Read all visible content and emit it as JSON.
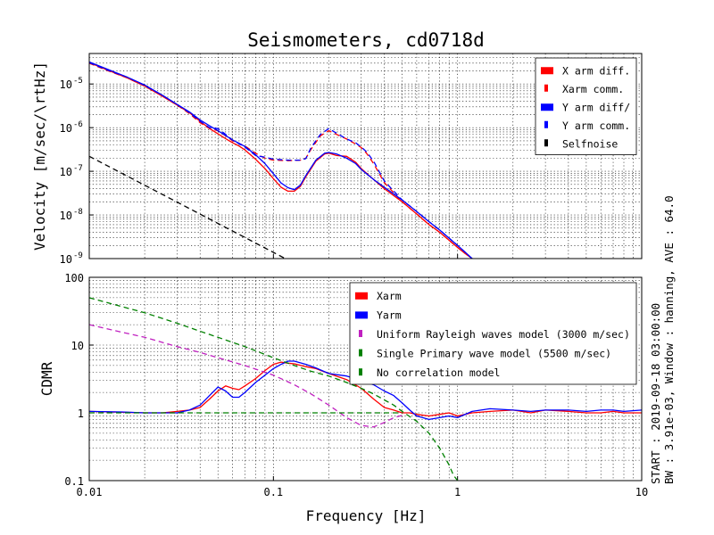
{
  "title": "Seismometers, cd0718d",
  "side_note": {
    "line1": "START : 2019-09-18 03:00:00",
    "line2": "BW : 3.91e-03, Window : hanning, AVE : 64.0"
  },
  "colors": {
    "red": "#ff0000",
    "blue": "#0000ff",
    "black": "#000000",
    "magenta": "#c020c0",
    "green": "#008000"
  },
  "chart_data": [
    {
      "type": "line",
      "panel": "top",
      "ylabel": "Velocity [m/sec/\\rtHz]",
      "xlabel": "",
      "xscale": "log",
      "yscale": "log",
      "xlim": [
        0.01,
        10
      ],
      "ylim": [
        1e-09,
        5e-05
      ],
      "grid": true,
      "legend_position": "top-right",
      "x_ticks": [
        {
          "value": 0.01,
          "label": ""
        },
        {
          "value": 0.1,
          "label": ""
        },
        {
          "value": 1,
          "label": ""
        },
        {
          "value": 10,
          "label": ""
        }
      ],
      "y_ticks": [
        {
          "value": 1e-09,
          "base": "10",
          "exp": "-9"
        },
        {
          "value": 1e-08,
          "base": "10",
          "exp": "-8"
        },
        {
          "value": 1e-07,
          "base": "10",
          "exp": "-7"
        },
        {
          "value": 1e-06,
          "base": "10",
          "exp": "-6"
        },
        {
          "value": 1e-05,
          "base": "10",
          "exp": "-5"
        }
      ],
      "series": [
        {
          "name": "X arm diff.",
          "color": "#ff0000",
          "style": "solid",
          "x": [
            0.01,
            0.0125,
            0.016,
            0.02,
            0.025,
            0.03,
            0.035,
            0.04,
            0.045,
            0.05,
            0.055,
            0.06,
            0.065,
            0.07,
            0.08,
            0.09,
            0.1,
            0.11,
            0.12,
            0.13,
            0.14,
            0.15,
            0.17,
            0.19,
            0.2,
            0.22,
            0.25,
            0.28,
            0.3,
            0.35,
            0.4,
            0.5,
            0.6,
            0.7,
            0.8,
            1.0,
            1.1,
            1.2
          ],
          "y": [
            3.1e-05,
            2.1e-05,
            1.4e-05,
            9e-06,
            5.2e-06,
            3.3e-06,
            2.2e-06,
            1.4e-06,
            9.5e-07,
            7.2e-07,
            5.6e-07,
            4.5e-07,
            3.8e-07,
            3.1e-07,
            1.9e-07,
            1.15e-07,
            6.8e-08,
            4.3e-08,
            3.5e-08,
            3.5e-08,
            4.5e-08,
            7.5e-08,
            1.7e-07,
            2.5e-07,
            2.6e-07,
            2.3e-07,
            2.2e-07,
            1.6e-07,
            1.15e-07,
            6.5e-08,
            4e-08,
            2e-08,
            1.05e-08,
            6e-09,
            4e-09,
            1.8e-09,
            1.3e-09,
            1e-09
          ]
        },
        {
          "name": "Xarm comm.",
          "color": "#ff0000",
          "style": "dashed",
          "x": [
            0.01,
            0.0125,
            0.016,
            0.02,
            0.025,
            0.03,
            0.035,
            0.04,
            0.045,
            0.05,
            0.055,
            0.06,
            0.07,
            0.08,
            0.09,
            0.1,
            0.12,
            0.14,
            0.15,
            0.16,
            0.18,
            0.2,
            0.22,
            0.25,
            0.28,
            0.3,
            0.32,
            0.35,
            0.4,
            0.5,
            0.6,
            0.7,
            0.8,
            1.0,
            1.2
          ],
          "y": [
            3e-05,
            2.05e-05,
            1.4e-05,
            9e-06,
            5.3e-06,
            3.3e-06,
            2.1e-06,
            1.3e-06,
            9.5e-07,
            8.5e-07,
            6.5e-07,
            5e-07,
            3.8e-07,
            2.6e-07,
            2e-07,
            1.8e-07,
            1.75e-07,
            1.8e-07,
            2e-07,
            3.2e-07,
            6.5e-07,
            8.5e-07,
            7e-07,
            5.5e-07,
            4.2e-07,
            3.5e-07,
            2.6e-07,
            1.5e-07,
            5.5e-08,
            2e-08,
            1.05e-08,
            6e-09,
            4e-09,
            1.8e-09,
            1e-09
          ]
        },
        {
          "name": "Y arm diff/",
          "color": "#0000ff",
          "style": "solid",
          "x": [
            0.01,
            0.0125,
            0.016,
            0.02,
            0.025,
            0.03,
            0.035,
            0.04,
            0.045,
            0.05,
            0.055,
            0.06,
            0.065,
            0.07,
            0.08,
            0.09,
            0.1,
            0.11,
            0.12,
            0.13,
            0.14,
            0.15,
            0.17,
            0.19,
            0.2,
            0.22,
            0.25,
            0.28,
            0.3,
            0.35,
            0.4,
            0.5,
            0.6,
            0.7,
            0.8,
            1.0,
            1.1,
            1.2
          ],
          "y": [
            3.2e-05,
            2.2e-05,
            1.45e-05,
            9.5e-06,
            5.5e-06,
            3.4e-06,
            2.3e-06,
            1.5e-06,
            1.1e-06,
            8.5e-07,
            6.6e-07,
            5.2e-07,
            4.4e-07,
            3.7e-07,
            2.4e-07,
            1.5e-07,
            8.8e-08,
            5.4e-08,
            4.2e-08,
            3.8e-08,
            4.8e-08,
            8e-08,
            1.8e-07,
            2.6e-07,
            2.7e-07,
            2.5e-07,
            2e-07,
            1.5e-07,
            1.1e-07,
            6.5e-08,
            4.3e-08,
            2.2e-08,
            1.2e-08,
            7e-09,
            4.5e-09,
            2e-09,
            1.4e-09,
            1e-09
          ]
        },
        {
          "name": "Y arm comm.",
          "color": "#0000ff",
          "style": "dashed",
          "x": [
            0.01,
            0.0125,
            0.016,
            0.02,
            0.025,
            0.03,
            0.035,
            0.04,
            0.045,
            0.05,
            0.055,
            0.06,
            0.07,
            0.08,
            0.09,
            0.1,
            0.12,
            0.14,
            0.15,
            0.16,
            0.18,
            0.2,
            0.22,
            0.25,
            0.28,
            0.3,
            0.32,
            0.35,
            0.4,
            0.5,
            0.6,
            0.7,
            0.8,
            1.0,
            1.2
          ],
          "y": [
            3.1e-05,
            2.1e-05,
            1.45e-05,
            9.3e-06,
            5.5e-06,
            3.4e-06,
            2.2e-06,
            1.4e-06,
            1e-06,
            9.5e-07,
            7e-07,
            5.2e-07,
            3.6e-07,
            2.3e-07,
            2.1e-07,
            1.9e-07,
            1.8e-07,
            1.8e-07,
            1.95e-07,
            3.5e-07,
            7e-07,
            9.5e-07,
            7.5e-07,
            5.5e-07,
            4.5e-07,
            3.6e-07,
            2.8e-07,
            1.7e-07,
            6e-08,
            2.2e-08,
            1.2e-08,
            7e-09,
            4.5e-09,
            2e-09,
            1e-09
          ]
        },
        {
          "name": "Selfnoise",
          "color": "#000000",
          "style": "dashed",
          "x": [
            0.01,
            0.1161
          ],
          "y": [
            2.2e-07,
            1e-09
          ]
        }
      ]
    },
    {
      "type": "line",
      "panel": "bottom",
      "ylabel": "CDMR",
      "xlabel": "Frequency [Hz]",
      "xscale": "log",
      "yscale": "log",
      "xlim": [
        0.01,
        10
      ],
      "ylim": [
        0.1,
        100
      ],
      "grid": true,
      "legend_position": "top-right",
      "x_ticks": [
        {
          "value": 0.01,
          "label": "0.01"
        },
        {
          "value": 0.1,
          "label": "0.1"
        },
        {
          "value": 1,
          "label": "1"
        },
        {
          "value": 10,
          "label": "10"
        }
      ],
      "y_ticks": [
        {
          "value": 0.1,
          "label": "0.1"
        },
        {
          "value": 1,
          "label": "1"
        },
        {
          "value": 10,
          "label": "10"
        },
        {
          "value": 100,
          "label": "100"
        }
      ],
      "series": [
        {
          "name": "Xarm",
          "color": "#ff0000",
          "style": "solid",
          "x": [
            0.01,
            0.015,
            0.02,
            0.025,
            0.03,
            0.035,
            0.04,
            0.045,
            0.05,
            0.055,
            0.06,
            0.065,
            0.07,
            0.08,
            0.09,
            0.1,
            0.11,
            0.12,
            0.13,
            0.15,
            0.17,
            0.2,
            0.25,
            0.3,
            0.35,
            0.4,
            0.45,
            0.5,
            0.55,
            0.6,
            0.7,
            0.8,
            0.9,
            1.0,
            1.2,
            1.5,
            2,
            2.5,
            3,
            4,
            5,
            6,
            7,
            8,
            10
          ],
          "y": [
            1.05,
            1.02,
            1.0,
            1.0,
            1.05,
            1.1,
            1.2,
            1.6,
            2.1,
            2.5,
            2.3,
            2.2,
            2.5,
            3.2,
            4.2,
            5.2,
            5.6,
            5.4,
            5.3,
            4.8,
            4.5,
            3.8,
            3.1,
            2.3,
            1.6,
            1.2,
            1.1,
            1.0,
            1.0,
            0.95,
            0.9,
            0.95,
            1.0,
            0.9,
            1.0,
            1.05,
            1.1,
            1.0,
            1.1,
            1.05,
            1.0,
            1.0,
            1.05,
            1.0,
            1.0
          ]
        },
        {
          "name": "Yarm",
          "color": "#0000ff",
          "style": "solid",
          "x": [
            0.01,
            0.015,
            0.02,
            0.025,
            0.03,
            0.035,
            0.04,
            0.045,
            0.05,
            0.055,
            0.06,
            0.065,
            0.07,
            0.08,
            0.09,
            0.1,
            0.11,
            0.12,
            0.13,
            0.15,
            0.17,
            0.2,
            0.25,
            0.3,
            0.35,
            0.4,
            0.45,
            0.5,
            0.55,
            0.6,
            0.7,
            0.8,
            0.9,
            1.0,
            1.2,
            1.5,
            2,
            2.5,
            3,
            4,
            5,
            6,
            7,
            8,
            10
          ],
          "y": [
            1.05,
            1.03,
            1.0,
            1.0,
            1.0,
            1.1,
            1.3,
            1.8,
            2.4,
            2.1,
            1.7,
            1.7,
            2.0,
            2.8,
            3.6,
            4.5,
            5.2,
            5.8,
            5.8,
            5.2,
            4.6,
            3.8,
            3.5,
            3.0,
            2.6,
            2.1,
            1.8,
            1.4,
            1.1,
            0.9,
            0.8,
            0.85,
            0.9,
            0.85,
            1.05,
            1.15,
            1.1,
            1.05,
            1.1,
            1.1,
            1.05,
            1.1,
            1.1,
            1.05,
            1.1
          ]
        },
        {
          "name": "Uniform Rayleigh waves model (3000 m/sec)",
          "color": "#c020c0",
          "style": "dashed",
          "x": [
            0.01,
            0.015,
            0.02,
            0.03,
            0.04,
            0.05,
            0.07,
            0.1,
            0.13,
            0.16,
            0.2,
            0.25,
            0.3,
            0.35,
            0.4,
            0.45,
            0.5
          ],
          "y": [
            20,
            15.5,
            13,
            9.5,
            7.8,
            6.5,
            5,
            3.6,
            2.6,
            1.9,
            1.3,
            0.85,
            0.65,
            0.62,
            0.72,
            0.85,
            0.92
          ]
        },
        {
          "name": "Single Primary wave model (5500 m/sec)",
          "color": "#008000",
          "style": "dashed",
          "x": [
            0.01,
            0.015,
            0.02,
            0.03,
            0.04,
            0.05,
            0.07,
            0.1,
            0.13,
            0.16,
            0.2,
            0.25,
            0.3,
            0.35,
            0.4,
            0.45,
            0.5,
            0.6,
            0.7,
            0.8,
            0.9,
            0.95,
            1.0
          ],
          "y": [
            50,
            37,
            30,
            21,
            16,
            13,
            9.5,
            6.5,
            5,
            4.1,
            3.5,
            2.8,
            2.3,
            1.9,
            1.55,
            1.3,
            1.05,
            0.75,
            0.5,
            0.3,
            0.17,
            0.12,
            0.1
          ]
        },
        {
          "name": "No correlation model",
          "color": "#008000",
          "style": "dashed",
          "x": [
            0.01,
            0.5
          ],
          "y": [
            1,
            1
          ]
        }
      ]
    }
  ]
}
